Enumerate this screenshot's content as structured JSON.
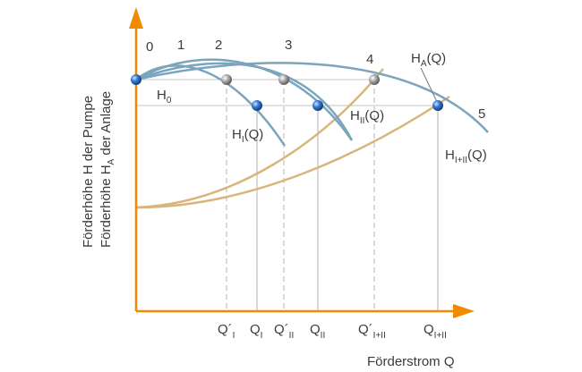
{
  "colors": {
    "axis": "#f18a00",
    "pump": "#7ba4bd",
    "system": "#d9b57c",
    "grid": "#b9b9b9",
    "text": "#3b3b3b"
  },
  "y_axis_title_line1": "Förderhöhe H der Pumpe",
  "y_axis_title_line2": {
    "pre": "Förderhöhe H",
    "sub": "A",
    "post": " der Anlage"
  },
  "x_axis_title": "Förderstrom Q",
  "point_numbers": [
    "0",
    "1",
    "2",
    "3",
    "4",
    "5"
  ],
  "h0": {
    "main": "H",
    "sub": "0"
  },
  "curve_labels": {
    "HA": {
      "main": "H",
      "sub": "A",
      "post": "(Q)"
    },
    "HII": {
      "main": "H",
      "sub": "II",
      "post": "(Q)"
    },
    "HI": {
      "main": "H",
      "sub": "I",
      "post": "(Q)"
    },
    "HIplusII": {
      "main": "H",
      "sub": "I+II",
      "post": "(Q)"
    }
  },
  "x_ticks": [
    {
      "main": "Q´",
      "sub": "I"
    },
    {
      "main": "Q",
      "sub": "I"
    },
    {
      "main": "Q´",
      "sub": "II"
    },
    {
      "main": "Q",
      "sub": "II"
    },
    {
      "main": "Q´",
      "sub": "I+II"
    },
    {
      "main": "Q",
      "sub": "I+II"
    }
  ]
}
